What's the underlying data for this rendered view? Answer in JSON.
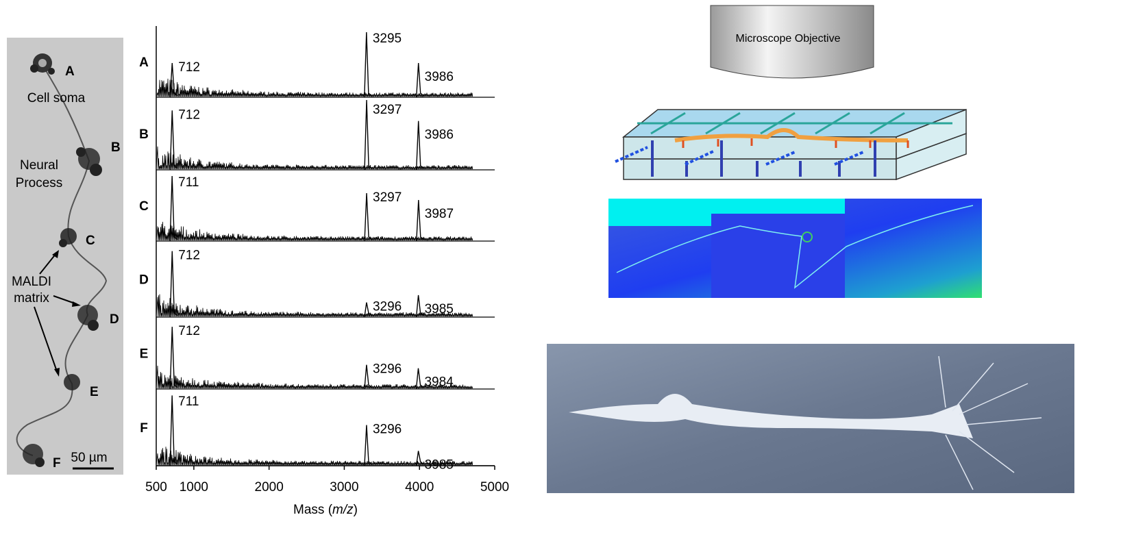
{
  "micrograph": {
    "spot_labels": [
      "A",
      "B",
      "C",
      "D",
      "E",
      "F"
    ],
    "soma_label": "Cell soma",
    "process_label": [
      "Neural",
      "Process"
    ],
    "matrix_label": [
      "MALDI",
      "matrix"
    ],
    "scale_label": "50 µm"
  },
  "spectra": {
    "xlim": [
      500,
      5000
    ],
    "xticks": [
      500,
      1000,
      2000,
      3000,
      4000,
      5000
    ],
    "xlabel": [
      "Mass (",
      "m/z",
      ")"
    ],
    "panels": [
      {
        "label": "A",
        "peaks": [
          712,
          3295,
          3986
        ],
        "heights": [
          0.5,
          0.95,
          0.5
        ]
      },
      {
        "label": "B",
        "peaks": [
          712,
          3297,
          3986
        ],
        "heights": [
          0.85,
          1.0,
          0.7
        ]
      },
      {
        "label": "C",
        "peaks": [
          711,
          3297,
          3987
        ],
        "heights": [
          0.95,
          0.7,
          0.6
        ]
      },
      {
        "label": "D",
        "peaks": [
          712,
          3296,
          3985
        ],
        "heights": [
          0.9,
          0.2,
          0.3
        ]
      },
      {
        "label": "E",
        "peaks": [
          712,
          3296,
          3984
        ],
        "heights": [
          0.9,
          0.35,
          0.3
        ]
      },
      {
        "label": "F",
        "peaks": [
          711,
          3296,
          3985
        ],
        "heights": [
          0.95,
          0.55,
          0.2
        ]
      }
    ]
  },
  "objective_label": "Microscope Objective"
}
